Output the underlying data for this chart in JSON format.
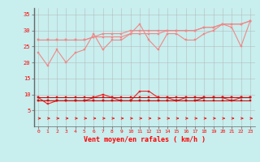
{
  "bg_color": "#c8eeee",
  "grid_color": "#b0b0b0",
  "xlabel": "Vent moyen/en rafales ( km/h )",
  "xlim": [
    -0.5,
    23.5
  ],
  "ylim": [
    0,
    37
  ],
  "yticks": [
    5,
    10,
    15,
    20,
    25,
    30,
    35
  ],
  "xticks": [
    0,
    1,
    2,
    3,
    4,
    5,
    6,
    7,
    8,
    9,
    10,
    11,
    12,
    13,
    14,
    15,
    16,
    17,
    18,
    19,
    20,
    21,
    22,
    23
  ],
  "line_color_upper": "#f08888",
  "line_color_lower1": "#ee2222",
  "line_color_lower2": "#cc1111",
  "arrow_color": "#ee2222",
  "series_upper_1": [
    23,
    19,
    24,
    20,
    23,
    24,
    29,
    24,
    27,
    27,
    29,
    32,
    27,
    24,
    29,
    29,
    27,
    27,
    29,
    30,
    32,
    31,
    25,
    33
  ],
  "series_upper_2": [
    27,
    27,
    27,
    27,
    27,
    27,
    28,
    28,
    28,
    28,
    29,
    29,
    29,
    29,
    30,
    30,
    30,
    30,
    31,
    31,
    32,
    32,
    32,
    33
  ],
  "series_upper_3": [
    27,
    27,
    27,
    27,
    27,
    27,
    28,
    29,
    29,
    29,
    30,
    30,
    30,
    30,
    30,
    30,
    30,
    30,
    31,
    31,
    32,
    32,
    32,
    33
  ],
  "series_lower_1": [
    9,
    7,
    8,
    8,
    8,
    8,
    9,
    10,
    9,
    8,
    8,
    11,
    11,
    9,
    9,
    8,
    9,
    9,
    9,
    9,
    9,
    8,
    9,
    9
  ],
  "series_lower_2": [
    8,
    8,
    8,
    8,
    8,
    8,
    8,
    8,
    8,
    8,
    8,
    8,
    8,
    8,
    8,
    8,
    8,
    8,
    8,
    8,
    8,
    8,
    8,
    8
  ],
  "series_lower_3": [
    8,
    8,
    8,
    8,
    8,
    8,
    8,
    8,
    8,
    8,
    8,
    8,
    8,
    8,
    8,
    8,
    8,
    8,
    9,
    9,
    9,
    9,
    9,
    9
  ],
  "series_lower_4": [
    9,
    9,
    9,
    9,
    9,
    9,
    9,
    9,
    9,
    9,
    9,
    9,
    9,
    9,
    9,
    9,
    9,
    9,
    9,
    9,
    9,
    9,
    9,
    9
  ]
}
